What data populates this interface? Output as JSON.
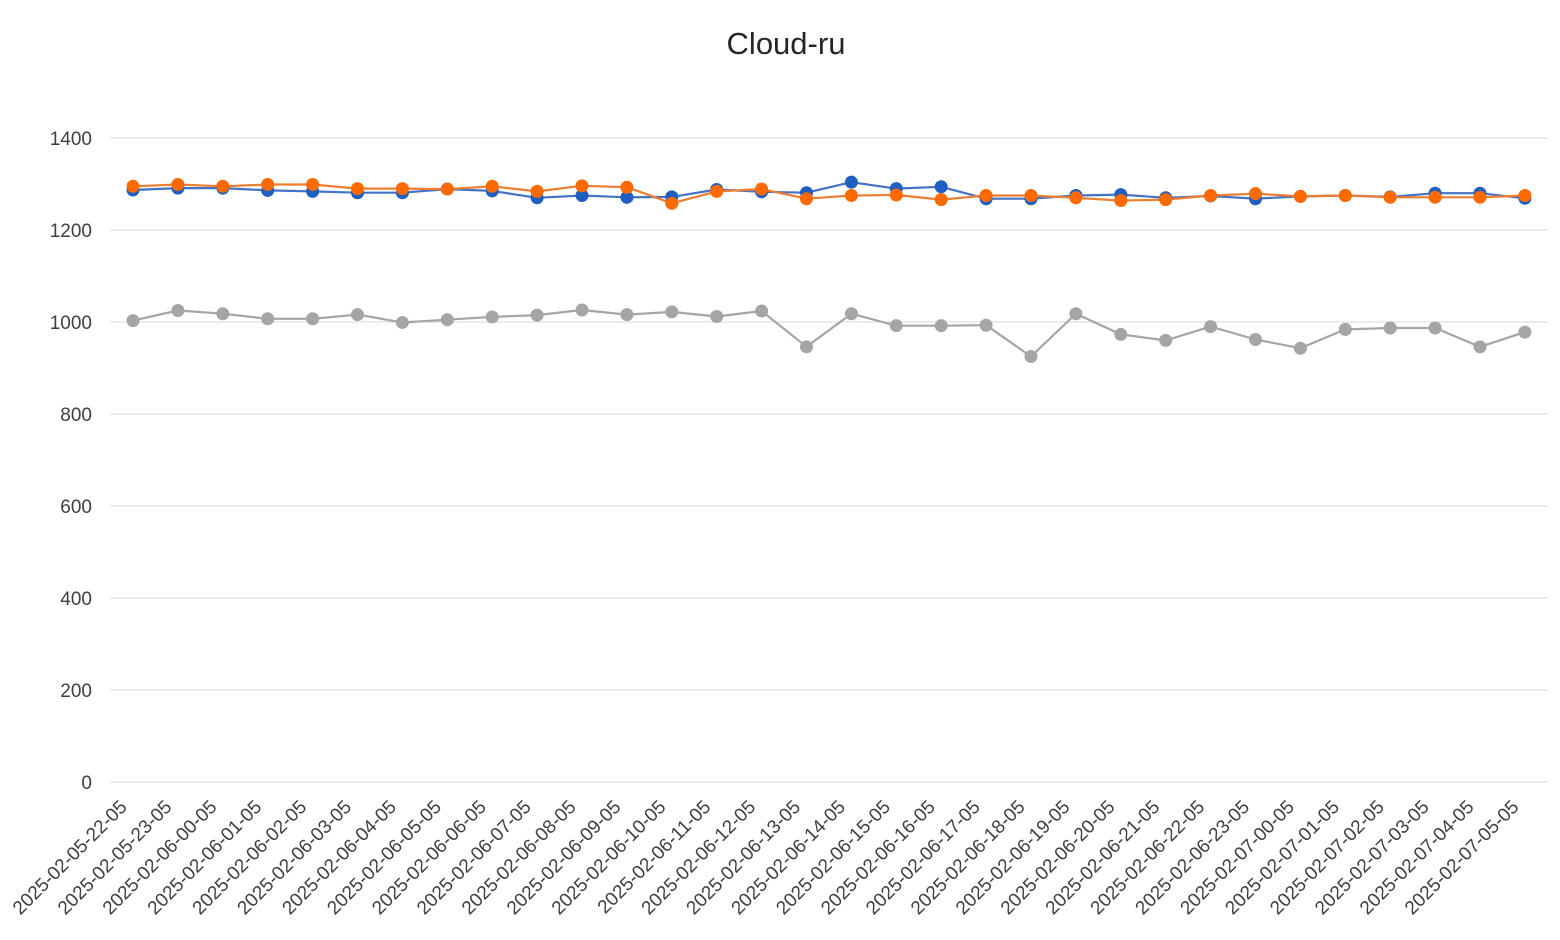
{
  "chart_data": {
    "type": "line",
    "title": "Cloud-ru",
    "xlabel": "",
    "ylabel": "",
    "ylim": [
      0,
      1400
    ],
    "yticks": [
      0,
      200,
      400,
      600,
      800,
      1000,
      1200,
      1400
    ],
    "grid": true,
    "legend": "none",
    "categories": [
      "2025-02-05-22-05",
      "2025-02-05-23-05",
      "2025-02-06-00-05",
      "2025-02-06-01-05",
      "2025-02-06-02-05",
      "2025-02-06-03-05",
      "2025-02-06-04-05",
      "2025-02-06-05-05",
      "2025-02-06-06-05",
      "2025-02-06-07-05",
      "2025-02-06-08-05",
      "2025-02-06-09-05",
      "2025-02-06-10-05",
      "2025-02-06-11-05",
      "2025-02-06-12-05",
      "2025-02-06-13-05",
      "2025-02-06-14-05",
      "2025-02-06-15-05",
      "2025-02-06-16-05",
      "2025-02-06-17-05",
      "2025-02-06-18-05",
      "2025-02-06-19-05",
      "2025-02-06-20-05",
      "2025-02-06-21-05",
      "2025-02-06-22-05",
      "2025-02-06-23-05",
      "2025-02-07-00-05",
      "2025-02-07-01-05",
      "2025-02-07-02-05",
      "2025-02-07-03-05",
      "2025-02-07-04-05",
      "2025-02-07-05-05"
    ],
    "series": [
      {
        "color": "#4472C4",
        "marker_color": "#1F5FBF",
        "values": [
          1287,
          1291,
          1291,
          1286,
          1284,
          1281,
          1281,
          1289,
          1285,
          1270,
          1275,
          1271,
          1272,
          1288,
          1283,
          1281,
          1304,
          1290,
          1294,
          1268,
          1268,
          1275,
          1277,
          1270,
          1274,
          1268,
          1273,
          1275,
          1272,
          1280,
          1280,
          1269
        ]
      },
      {
        "color": "#ED7D31",
        "marker_color": "#FF6A00",
        "values": [
          1295,
          1299,
          1295,
          1299,
          1299,
          1290,
          1290,
          1289,
          1295,
          1284,
          1296,
          1293,
          1258,
          1284,
          1289,
          1268,
          1275,
          1276,
          1266,
          1275,
          1275,
          1270,
          1264,
          1266,
          1275,
          1279,
          1273,
          1275,
          1271,
          1271,
          1271,
          1275
        ]
      },
      {
        "color": "#A5A5A5",
        "marker_color": "#A5A5A5",
        "values": [
          1003,
          1025,
          1018,
          1007,
          1007,
          1016,
          999,
          1005,
          1011,
          1015,
          1026,
          1016,
          1022,
          1012,
          1024,
          946,
          1018,
          992,
          992,
          993,
          925,
          1018,
          973,
          960,
          990,
          962,
          943,
          984,
          987,
          987,
          946,
          978
        ]
      }
    ]
  }
}
